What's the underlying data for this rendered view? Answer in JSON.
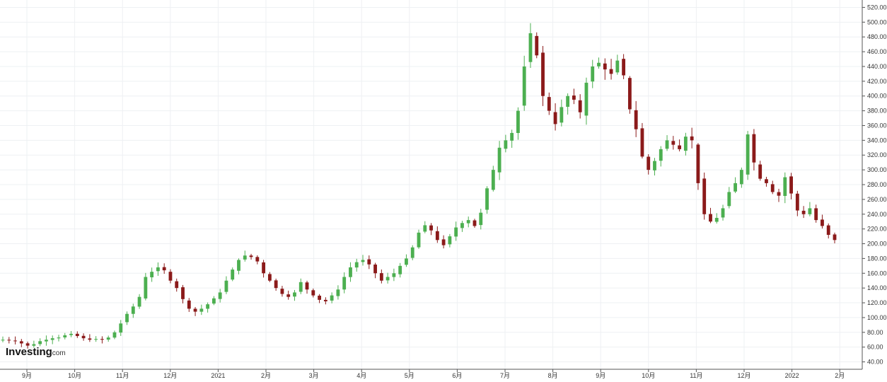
{
  "watermark": {
    "brand": "Investing",
    "suffix": ".com"
  },
  "colors": {
    "up": "#4caf50",
    "down": "#8b1a1a",
    "grid": "#eef0f3",
    "axis": "#555555",
    "background": "#ffffff"
  },
  "chart_data": {
    "type": "candlestick",
    "title": "",
    "xlabel": "",
    "ylabel": "",
    "ylim": [
      30,
      530
    ],
    "y_ticks": [
      40,
      60,
      80,
      100,
      120,
      140,
      160,
      180,
      200,
      220,
      240,
      260,
      280,
      300,
      320,
      340,
      360,
      380,
      400,
      420,
      440,
      460,
      480,
      500,
      520
    ],
    "y_tick_labels": [
      "40.00",
      "60.00",
      "80.00",
      "100.00",
      "120.00",
      "140.00",
      "160.00",
      "180.00",
      "200.00",
      "220.00",
      "240.00",
      "260.00",
      "280.00",
      "300.00",
      "320.00",
      "340.00",
      "360.00",
      "380.00",
      "400.00",
      "420.00",
      "440.00",
      "460.00",
      "480.00",
      "500.00",
      "520.00"
    ],
    "x_ticks": [
      "9月",
      "10月",
      "11月",
      "12月",
      "2021",
      "2月",
      "3月",
      "4月",
      "5月",
      "6月",
      "7月",
      "8月",
      "9月",
      "10月",
      "11月",
      "12月",
      "2022",
      "2月"
    ],
    "grid": true,
    "legend": "none",
    "series_close": [
      70,
      69,
      68,
      65,
      62,
      64,
      68,
      70,
      72,
      73,
      76,
      78,
      75,
      72,
      70,
      71,
      70,
      73,
      80,
      92,
      105,
      115,
      128,
      155,
      162,
      168,
      164,
      150,
      140,
      125,
      112,
      108,
      112,
      118,
      126,
      134,
      150,
      165,
      178,
      184,
      182,
      176,
      160,
      150,
      140,
      132,
      128,
      134,
      148,
      138,
      130,
      124,
      122,
      130,
      138,
      155,
      168,
      175,
      178,
      172,
      160,
      150,
      155,
      160,
      170,
      180,
      195,
      215,
      225,
      218,
      205,
      198,
      210,
      222,
      228,
      232,
      224,
      242,
      275,
      300,
      330,
      340,
      350,
      380,
      440,
      485,
      455,
      400,
      380,
      362,
      385,
      400,
      395,
      378,
      418,
      440,
      445,
      436,
      430,
      448,
      428,
      382,
      355,
      318,
      300,
      312,
      328,
      340,
      334,
      328,
      345,
      340,
      282,
      240,
      230,
      235,
      248,
      270,
      282,
      300,
      348,
      310,
      288,
      282,
      270,
      265,
      290,
      268,
      245,
      240,
      248,
      232,
      224,
      212,
      205
    ]
  }
}
